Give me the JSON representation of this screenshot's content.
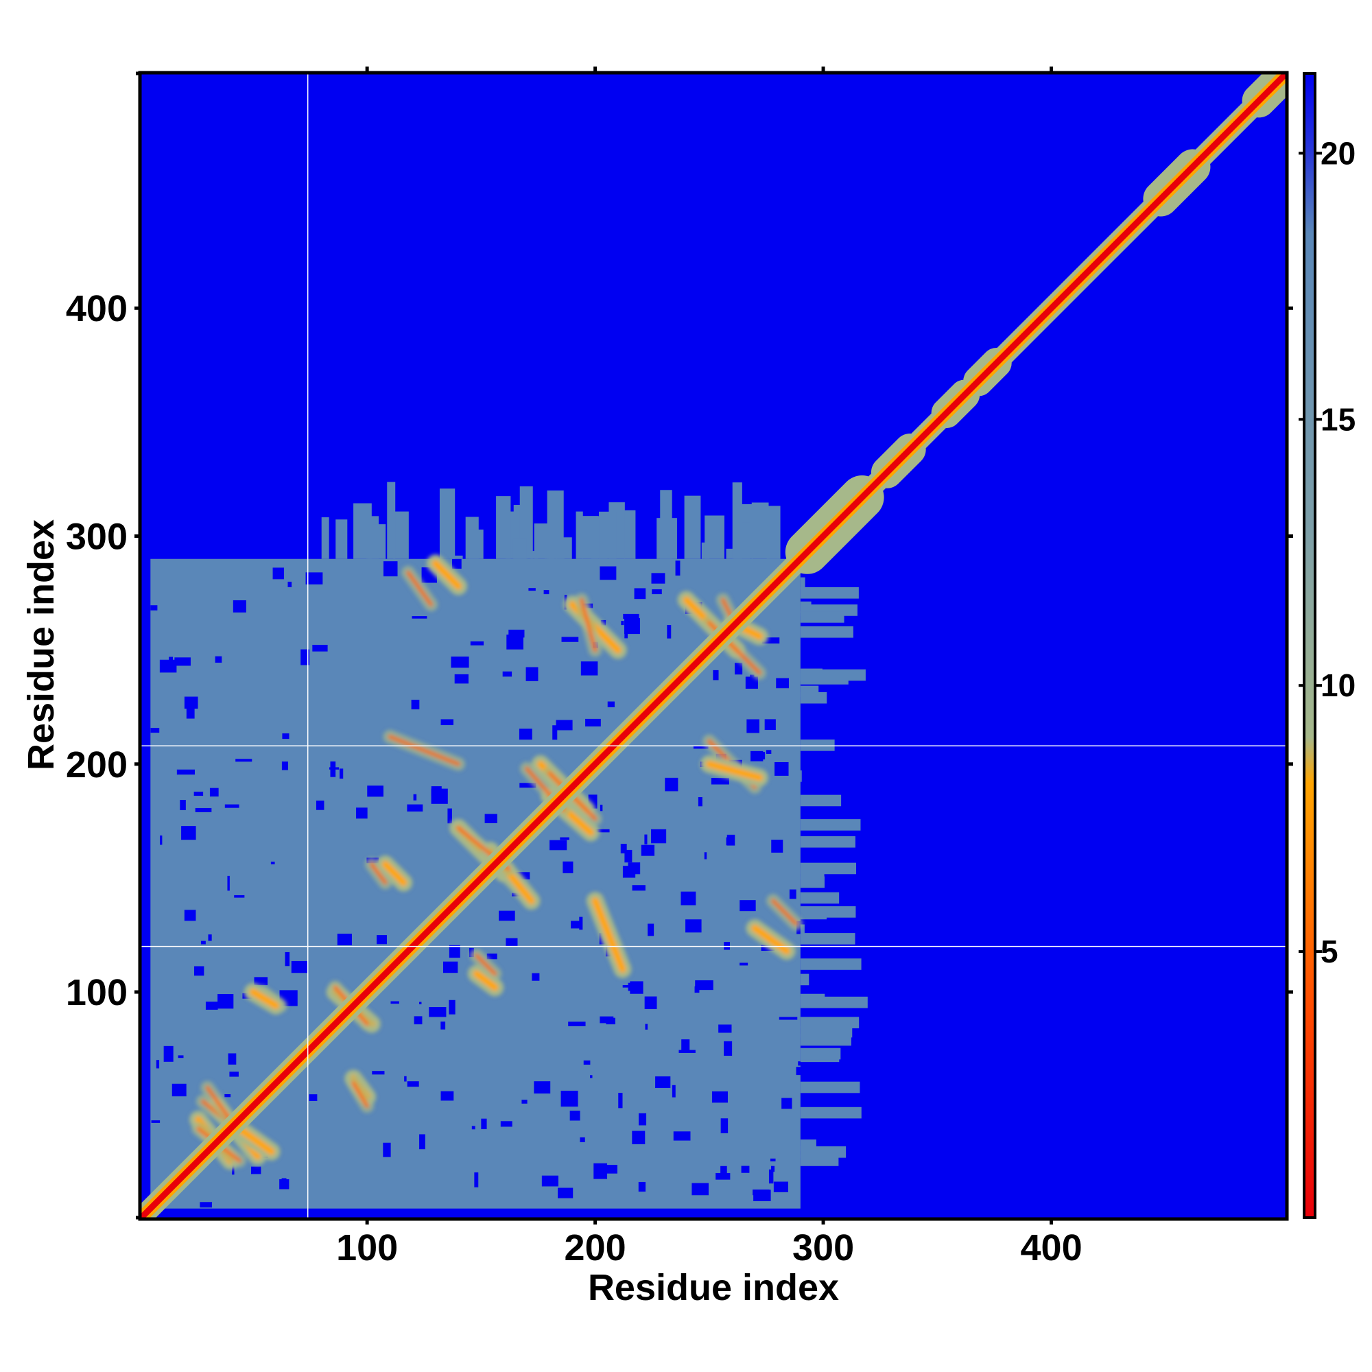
{
  "chart_data": {
    "type": "heatmap",
    "title": "",
    "xlabel": "Residue index",
    "ylabel": "Residue index",
    "xlim": [
      1,
      503
    ],
    "ylim": [
      1,
      503
    ],
    "x_ticks": [
      100,
      200,
      300,
      400
    ],
    "y_ticks": [
      100,
      200,
      300,
      400
    ],
    "x_tick_labels": [
      "100",
      "200",
      "300",
      "400"
    ],
    "y_tick_labels": [
      "100",
      "200",
      "300",
      "400"
    ],
    "colorbar": {
      "range": [
        0,
        21.5
      ],
      "ticks": [
        5,
        10,
        15,
        20
      ],
      "tick_labels": [
        "5",
        "10",
        "15",
        "20"
      ],
      "colors": {
        "low": "#e8000a",
        "mid_low": "#ff6a00",
        "mid": "#ffa500",
        "mid_high": "#a6b88a",
        "high": "#5a87b8",
        "max": "#0000f2"
      }
    },
    "description_of_values": "distance map; values near 0 along the diagonal, ~8-15 in a dense block for residues 1-300, >=21 elsewhere",
    "diagonal_band": {
      "from": 1,
      "to": 503
    },
    "dense_block": {
      "x_range": [
        5,
        290
      ],
      "y_range": [
        5,
        290
      ]
    },
    "white_lines": {
      "vertical_x": [
        74
      ],
      "horizontal_y": [
        208,
        120
      ]
    },
    "contact_lines": [
      {
        "x1": 26,
        "y1": 44,
        "x2": 40,
        "y2": 26
      },
      {
        "x1": 34,
        "y1": 50,
        "x2": 52,
        "y2": 28
      },
      {
        "x1": 44,
        "y1": 40,
        "x2": 58,
        "y2": 30
      },
      {
        "x1": 86,
        "y1": 100,
        "x2": 102,
        "y2": 86
      },
      {
        "x1": 94,
        "y1": 62,
        "x2": 100,
        "y2": 54
      },
      {
        "x1": 50,
        "y1": 100,
        "x2": 60,
        "y2": 94
      },
      {
        "x1": 140,
        "y1": 172,
        "x2": 160,
        "y2": 152
      },
      {
        "x1": 154,
        "y1": 162,
        "x2": 172,
        "y2": 140
      },
      {
        "x1": 108,
        "y1": 156,
        "x2": 116,
        "y2": 148
      },
      {
        "x1": 148,
        "y1": 108,
        "x2": 156,
        "y2": 102
      },
      {
        "x1": 176,
        "y1": 200,
        "x2": 196,
        "y2": 180
      },
      {
        "x1": 180,
        "y1": 186,
        "x2": 198,
        "y2": 170
      },
      {
        "x1": 240,
        "y1": 272,
        "x2": 262,
        "y2": 250
      },
      {
        "x1": 260,
        "y1": 262,
        "x2": 272,
        "y2": 256
      },
      {
        "x1": 190,
        "y1": 270,
        "x2": 210,
        "y2": 250
      },
      {
        "x1": 130,
        "y1": 288,
        "x2": 140,
        "y2": 278
      },
      {
        "x1": 200,
        "y1": 140,
        "x2": 212,
        "y2": 110
      },
      {
        "x1": 270,
        "y1": 128,
        "x2": 284,
        "y2": 118
      },
      {
        "x1": 250,
        "y1": 200,
        "x2": 272,
        "y2": 194
      }
    ],
    "bulges_on_diagonal": [
      {
        "center": 305,
        "half_width": 12
      },
      {
        "center": 333,
        "half_width": 5
      },
      {
        "center": 358,
        "half_width": 4
      },
      {
        "center": 372,
        "half_width": 4
      },
      {
        "center": 455,
        "half_width": 7
      },
      {
        "center": 497,
        "half_width": 6
      }
    ]
  }
}
